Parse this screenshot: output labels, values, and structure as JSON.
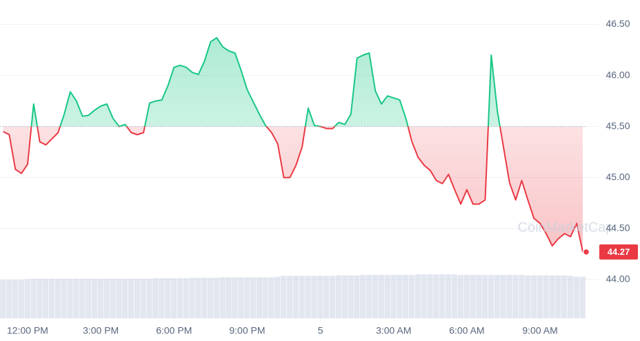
{
  "chart_data": {
    "type": "line",
    "watermark": "CoinMarketCap",
    "color_up": "#16c784",
    "color_down": "#ea3943",
    "volume_color": "#cfd6e4",
    "baseline": 45.5,
    "current_price": 44.27,
    "grid": true,
    "xlim": [
      -1.13,
      23.4
    ],
    "xticks": [
      {
        "value": 0,
        "label": "12:00 PM"
      },
      {
        "value": 3,
        "label": "3:00 PM"
      },
      {
        "value": 6,
        "label": "6:00 PM"
      },
      {
        "value": 9,
        "label": "9:00 PM"
      },
      {
        "value": 12,
        "label": "5"
      },
      {
        "value": 15,
        "label": "3:00 AM"
      },
      {
        "value": 18,
        "label": "6:00 AM"
      },
      {
        "value": 21,
        "label": "9:00 AM"
      }
    ],
    "ylim": [
      43.62,
      46.74
    ],
    "yticks": [
      {
        "value": 44,
        "label": "44.00"
      },
      {
        "value": 44.5,
        "label": "44.50"
      },
      {
        "value": 45,
        "label": "45.00"
      },
      {
        "value": 45.5,
        "label": "45.50"
      },
      {
        "value": 46,
        "label": "46.00"
      },
      {
        "value": 46.5,
        "label": "46.50"
      }
    ],
    "volume_lim": [
      0,
      100
    ],
    "x": [
      -1,
      -0.75,
      -0.5,
      -0.25,
      0,
      0.25,
      0.5,
      0.75,
      1,
      1.25,
      1.5,
      1.75,
      2,
      2.25,
      2.5,
      2.75,
      3,
      3.25,
      3.5,
      3.75,
      4,
      4.25,
      4.5,
      4.75,
      5,
      5.25,
      5.5,
      5.75,
      6,
      6.25,
      6.5,
      6.75,
      7,
      7.25,
      7.5,
      7.75,
      8,
      8.25,
      8.5,
      8.75,
      9,
      9.25,
      9.5,
      9.75,
      10,
      10.25,
      10.5,
      10.75,
      11,
      11.25,
      11.5,
      11.75,
      12,
      12.25,
      12.5,
      12.75,
      13,
      13.25,
      13.5,
      13.75,
      14,
      14.25,
      14.5,
      14.75,
      15,
      15.25,
      15.5,
      15.75,
      16,
      16.25,
      16.5,
      16.75,
      17,
      17.25,
      17.5,
      17.75,
      18,
      18.25,
      18.5,
      18.75,
      19,
      19.25,
      19.5,
      19.75,
      20,
      20.25,
      20.5,
      20.75,
      21,
      21.25,
      21.5,
      21.75,
      22,
      22.25,
      22.5,
      22.75
    ],
    "series": [
      {
        "name": "Price",
        "values": [
          45.45,
          45.42,
          45.08,
          45.04,
          45.13,
          45.72,
          45.35,
          45.32,
          45.38,
          45.44,
          45.62,
          45.84,
          45.75,
          45.6,
          45.61,
          45.66,
          45.7,
          45.72,
          45.58,
          45.5,
          45.52,
          45.44,
          45.42,
          45.44,
          45.73,
          45.75,
          45.76,
          45.9,
          46.08,
          46.1,
          46.08,
          46.03,
          46.01,
          46.14,
          46.33,
          46.37,
          46.28,
          46.24,
          46.22,
          46.05,
          45.86,
          45.74,
          45.62,
          45.51,
          45.44,
          45.33,
          45.0,
          45.0,
          45.12,
          45.3,
          45.68,
          45.51,
          45.5,
          45.48,
          45.48,
          45.54,
          45.52,
          45.62,
          46.17,
          46.2,
          46.22,
          45.85,
          45.72,
          45.8,
          45.78,
          45.76,
          45.58,
          45.35,
          45.2,
          45.12,
          45.07,
          44.97,
          44.94,
          45.03,
          44.88,
          44.74,
          44.88,
          44.74,
          44.74,
          44.78,
          46.2,
          45.65,
          45.3,
          44.95,
          44.78,
          44.97,
          44.78,
          44.6,
          44.55,
          44.45,
          44.33,
          44.4,
          44.45,
          44.42,
          44.55,
          44.27
        ]
      },
      {
        "name": "Volume",
        "values": [
          80,
          80,
          80,
          80,
          81,
          82,
          82,
          82,
          82,
          82,
          82,
          82,
          82,
          82,
          82,
          82,
          82,
          82,
          82,
          82,
          82,
          82,
          82,
          82,
          82,
          83,
          83,
          83,
          83,
          83,
          83,
          84,
          84,
          84,
          84,
          84,
          85,
          85,
          85,
          85,
          85,
          85,
          85,
          85,
          85,
          86,
          88,
          88,
          88,
          88,
          88,
          88,
          88,
          88,
          88,
          89,
          89,
          89,
          89,
          90,
          90,
          90,
          90,
          90,
          90,
          90,
          90,
          90,
          91,
          91,
          91,
          91,
          91,
          91,
          91,
          90,
          90,
          90,
          90,
          90,
          90,
          90,
          90,
          90,
          90,
          90,
          89,
          89,
          89,
          89,
          89,
          89,
          89,
          88,
          86,
          86
        ]
      }
    ]
  }
}
